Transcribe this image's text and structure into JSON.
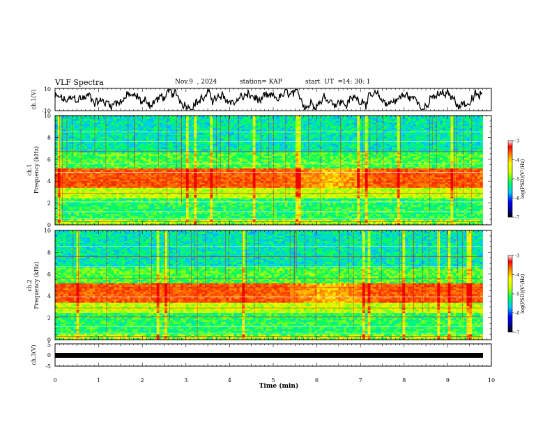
{
  "header": {
    "title": "VLF Spectra",
    "date": "Nov.9  , 2024",
    "station": "station= KAP",
    "start_label": "start  UT  =",
    "start_time": "14: 30: 1"
  },
  "chart_data": [
    {
      "type": "line",
      "name": "ch1-waveform",
      "ylabel": "ch.1(V)",
      "ylim": [
        -10,
        10
      ],
      "yticks": [
        "10",
        "-10"
      ],
      "xlim": [
        0,
        10
      ]
    },
    {
      "type": "heatmap",
      "name": "ch1-spectrogram",
      "ylabel": "ch.1\nFrequency (kHz)",
      "ylabel_lines": [
        "ch.1",
        "Frequency (kHz)"
      ],
      "ylim": [
        0,
        10
      ],
      "yticks": [
        "0",
        "2",
        "4",
        "6",
        "8",
        "10"
      ],
      "xlim": [
        0,
        9.8
      ],
      "colorbar": {
        "label": "log(PSD)(V²/Hz)",
        "range": [
          -7,
          -3
        ],
        "ticks": [
          "-3",
          "-4",
          "-5",
          "-6",
          "-7"
        ]
      }
    },
    {
      "type": "heatmap",
      "name": "ch2-spectrogram",
      "ylabel": "ch.2\nFrequency (kHz)",
      "ylabel_lines": [
        "ch.2",
        "Frequency (kHz)"
      ],
      "ylim": [
        0,
        10
      ],
      "yticks": [
        "0",
        "2",
        "4",
        "6",
        "8",
        "10"
      ],
      "xlim": [
        0,
        9.8
      ],
      "colorbar": {
        "label": "log(PSD)(V²/Hz)",
        "range": [
          -7,
          -3
        ],
        "ticks": [
          "-3",
          "-4",
          "-5",
          "-6",
          "-7"
        ]
      }
    },
    {
      "type": "line",
      "name": "ch3-waveform",
      "ylabel": "ch.3(V)",
      "ylim": [
        -5,
        5
      ],
      "yticks": [
        "5",
        "0",
        "-5"
      ],
      "xlim": [
        0,
        10
      ]
    }
  ],
  "xaxis": {
    "label": "Time  (min)",
    "ticks": [
      "0",
      "1",
      "2",
      "3",
      "4",
      "5",
      "6",
      "7",
      "8",
      "9",
      "10"
    ]
  }
}
